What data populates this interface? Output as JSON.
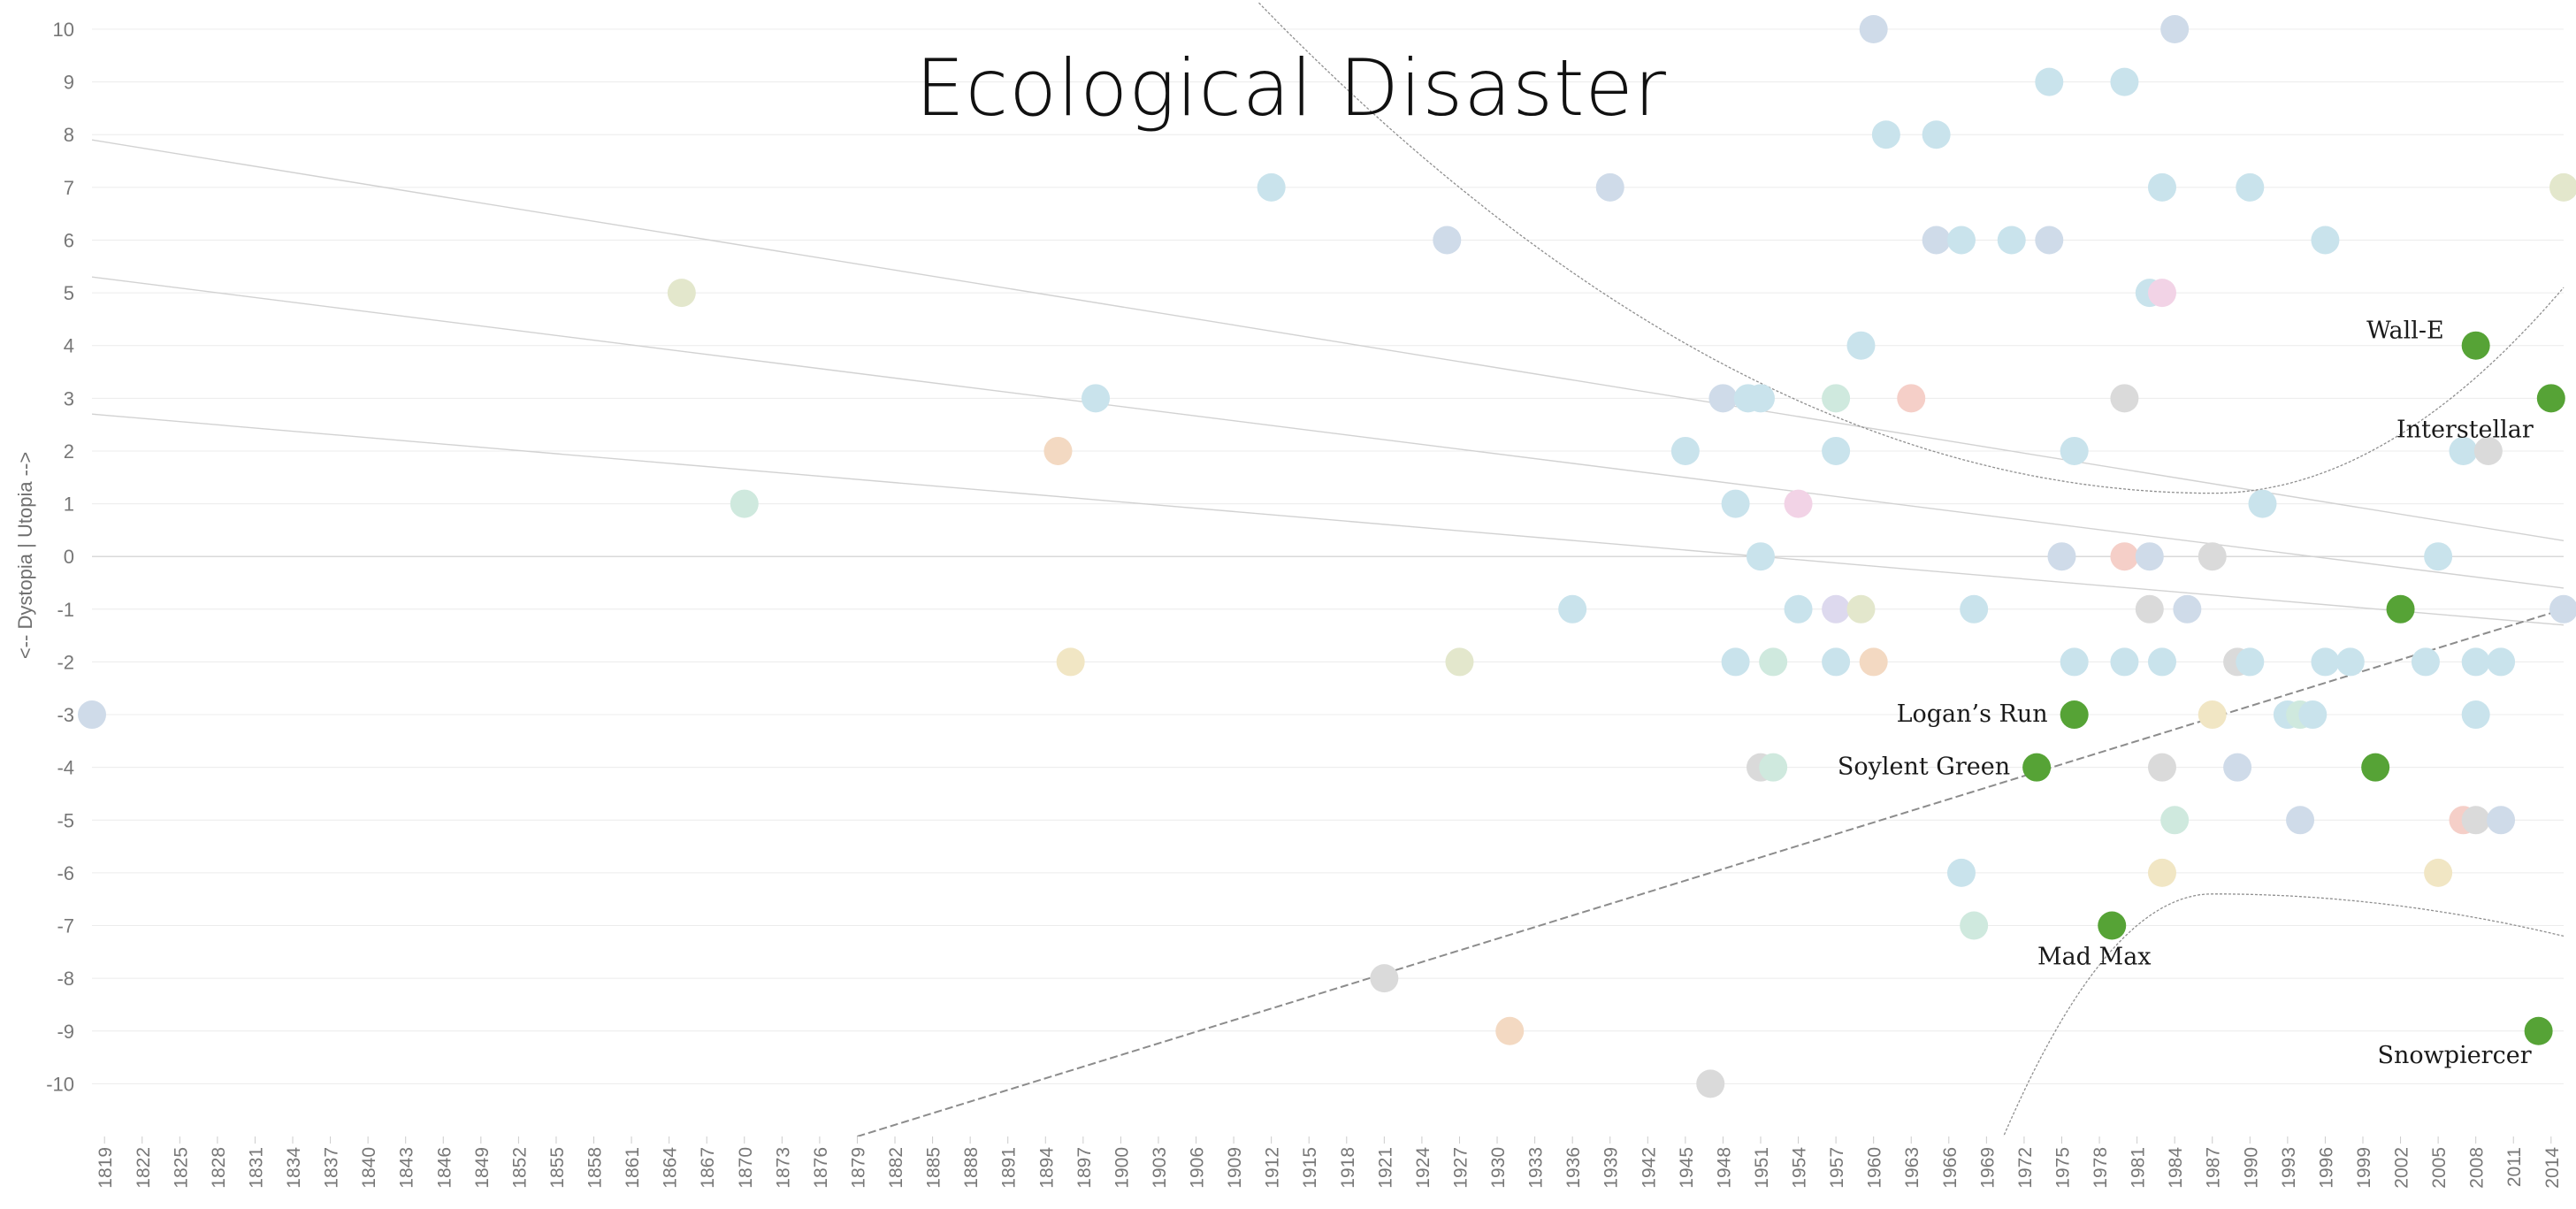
{
  "chart_data": {
    "type": "scatter",
    "title": "Ecological Disaster",
    "ylabel": "<-- Dystopia  |  Utopia -->",
    "xlabel": "",
    "xlim": [
      1818,
      2015
    ],
    "ylim": [
      -11,
      10
    ],
    "yticks": [
      "10",
      "9",
      "8",
      "7",
      "6",
      "5",
      "4",
      "3",
      "2",
      "1",
      "0",
      "-1",
      "-2",
      "-3",
      "-4",
      "-5",
      "-6",
      "-7",
      "-8",
      "-9",
      "-10"
    ],
    "xticks": [
      "1819",
      "1822",
      "1825",
      "1828",
      "1831",
      "1834",
      "1837",
      "1840",
      "1843",
      "1846",
      "1849",
      "1852",
      "1855",
      "1858",
      "1861",
      "1864",
      "1867",
      "1870",
      "1873",
      "1876",
      "1879",
      "1882",
      "1885",
      "1888",
      "1891",
      "1894",
      "1897",
      "1900",
      "1903",
      "1906",
      "1909",
      "1912",
      "1915",
      "1918",
      "1921",
      "1924",
      "1927",
      "1930",
      "1933",
      "1936",
      "1939",
      "1942",
      "1945",
      "1948",
      "1951",
      "1954",
      "1957",
      "1960",
      "1963",
      "1966",
      "1969",
      "1972",
      "1975",
      "1978",
      "1981",
      "1984",
      "1987",
      "1990",
      "1993",
      "1996",
      "1999",
      "2002",
      "2005",
      "2008",
      "2011",
      "2014"
    ],
    "colors": {
      "highlight": "#56a336",
      "blue": "#c9e3ec",
      "steel": "#cfdbe9",
      "green": "#cfe9de",
      "olive": "#e3e7cc",
      "tan": "#f1e6c4",
      "peach": "#f3d9c2",
      "salmon": "#f5cfc8",
      "pink": "#f2d3e6",
      "lavender": "#ddd9ee",
      "gray": "#dadada",
      "trend": "#9a9a9a"
    },
    "highlighted": [
      {
        "label": "Wall-E",
        "x": 2008,
        "y": 4
      },
      {
        "label": "Interstellar",
        "x": 2014,
        "y": 3
      },
      {
        "label": "",
        "x": 2002,
        "y": -1
      },
      {
        "label": "Logan’s Run",
        "x": 1976,
        "y": -3
      },
      {
        "label": "Soylent Green",
        "x": 1973,
        "y": -4
      },
      {
        "label": "",
        "x": 2000,
        "y": -4
      },
      {
        "label": "Mad Max",
        "x": 1979,
        "y": -7
      },
      {
        "label": "Snowpiercer",
        "x": 2013,
        "y": -9
      }
    ],
    "background_points": [
      {
        "x": 1818,
        "y": -3,
        "c": "steel"
      },
      {
        "x": 1865,
        "y": 5,
        "c": "olive"
      },
      {
        "x": 1870,
        "y": 1,
        "c": "green"
      },
      {
        "x": 1895,
        "y": 2,
        "c": "peach"
      },
      {
        "x": 1896,
        "y": -2,
        "c": "tan"
      },
      {
        "x": 1898,
        "y": 3,
        "c": "blue"
      },
      {
        "x": 1912,
        "y": 7,
        "c": "blue"
      },
      {
        "x": 1921,
        "y": -8,
        "c": "gray"
      },
      {
        "x": 1926,
        "y": 6,
        "c": "steel"
      },
      {
        "x": 1927,
        "y": -2,
        "c": "olive"
      },
      {
        "x": 1931,
        "y": -9,
        "c": "peach"
      },
      {
        "x": 1936,
        "y": -1,
        "c": "blue"
      },
      {
        "x": 1939,
        "y": 7,
        "c": "steel"
      },
      {
        "x": 1945,
        "y": 2,
        "c": "blue"
      },
      {
        "x": 1947,
        "y": -10,
        "c": "gray"
      },
      {
        "x": 1948,
        "y": 3,
        "c": "steel"
      },
      {
        "x": 1949,
        "y": 1,
        "c": "blue"
      },
      {
        "x": 1949,
        "y": -2,
        "c": "blue"
      },
      {
        "x": 1950,
        "y": 3,
        "c": "blue"
      },
      {
        "x": 1951,
        "y": 3,
        "c": "blue"
      },
      {
        "x": 1951,
        "y": 0,
        "c": "blue"
      },
      {
        "x": 1951,
        "y": -4,
        "c": "gray"
      },
      {
        "x": 1952,
        "y": -4,
        "c": "green"
      },
      {
        "x": 1952,
        "y": -2,
        "c": "green"
      },
      {
        "x": 1954,
        "y": -1,
        "c": "blue"
      },
      {
        "x": 1954,
        "y": 1,
        "c": "pink"
      },
      {
        "x": 1957,
        "y": 3,
        "c": "green"
      },
      {
        "x": 1957,
        "y": 2,
        "c": "blue"
      },
      {
        "x": 1957,
        "y": -1,
        "c": "lavender"
      },
      {
        "x": 1957,
        "y": -2,
        "c": "blue"
      },
      {
        "x": 1959,
        "y": -1,
        "c": "olive"
      },
      {
        "x": 1960,
        "y": 10,
        "c": "steel"
      },
      {
        "x": 1959,
        "y": 4,
        "c": "blue"
      },
      {
        "x": 1960,
        "y": -2,
        "c": "peach"
      },
      {
        "x": 1961,
        "y": 8,
        "c": "blue"
      },
      {
        "x": 1963,
        "y": 3,
        "c": "salmon"
      },
      {
        "x": 1965,
        "y": 8,
        "c": "blue"
      },
      {
        "x": 1965,
        "y": 6,
        "c": "steel"
      },
      {
        "x": 1967,
        "y": 6,
        "c": "blue"
      },
      {
        "x": 1967,
        "y": -6,
        "c": "blue"
      },
      {
        "x": 1968,
        "y": -1,
        "c": "blue"
      },
      {
        "x": 1968,
        "y": -7,
        "c": "green"
      },
      {
        "x": 1971,
        "y": 6,
        "c": "blue"
      },
      {
        "x": 1974,
        "y": 9,
        "c": "blue"
      },
      {
        "x": 1974,
        "y": 6,
        "c": "steel"
      },
      {
        "x": 1975,
        "y": 0,
        "c": "steel"
      },
      {
        "x": 1976,
        "y": 2,
        "c": "blue"
      },
      {
        "x": 1976,
        "y": -2,
        "c": "blue"
      },
      {
        "x": 1980,
        "y": 9,
        "c": "blue"
      },
      {
        "x": 1980,
        "y": 3,
        "c": "gray"
      },
      {
        "x": 1980,
        "y": 0,
        "c": "salmon"
      },
      {
        "x": 1980,
        "y": -2,
        "c": "blue"
      },
      {
        "x": 1982,
        "y": 5,
        "c": "blue"
      },
      {
        "x": 1982,
        "y": 0,
        "c": "steel"
      },
      {
        "x": 1982,
        "y": -1,
        "c": "gray"
      },
      {
        "x": 1983,
        "y": 5,
        "c": "pink"
      },
      {
        "x": 1983,
        "y": 7,
        "c": "blue"
      },
      {
        "x": 1983,
        "y": -2,
        "c": "blue"
      },
      {
        "x": 1983,
        "y": -4,
        "c": "gray"
      },
      {
        "x": 1983,
        "y": -6,
        "c": "tan"
      },
      {
        "x": 1984,
        "y": 10,
        "c": "steel"
      },
      {
        "x": 1984,
        "y": -5,
        "c": "green"
      },
      {
        "x": 1985,
        "y": -1,
        "c": "steel"
      },
      {
        "x": 1987,
        "y": 0,
        "c": "gray"
      },
      {
        "x": 1987,
        "y": -3,
        "c": "tan"
      },
      {
        "x": 1989,
        "y": -2,
        "c": "gray"
      },
      {
        "x": 1989,
        "y": -4,
        "c": "steel"
      },
      {
        "x": 1990,
        "y": 7,
        "c": "blue"
      },
      {
        "x": 1990,
        "y": -2,
        "c": "blue"
      },
      {
        "x": 1991,
        "y": 1,
        "c": "blue"
      },
      {
        "x": 1993,
        "y": -3,
        "c": "blue"
      },
      {
        "x": 1994,
        "y": -3,
        "c": "green"
      },
      {
        "x": 1994,
        "y": -5,
        "c": "steel"
      },
      {
        "x": 1995,
        "y": -3,
        "c": "blue"
      },
      {
        "x": 1996,
        "y": 6,
        "c": "blue"
      },
      {
        "x": 1996,
        "y": -2,
        "c": "blue"
      },
      {
        "x": 1998,
        "y": -2,
        "c": "blue"
      },
      {
        "x": 2004,
        "y": -2,
        "c": "blue"
      },
      {
        "x": 2005,
        "y": 0,
        "c": "blue"
      },
      {
        "x": 2005,
        "y": -6,
        "c": "tan"
      },
      {
        "x": 2007,
        "y": 2,
        "c": "blue"
      },
      {
        "x": 2007,
        "y": -5,
        "c": "salmon"
      },
      {
        "x": 2008,
        "y": -2,
        "c": "blue"
      },
      {
        "x": 2008,
        "y": -3,
        "c": "blue"
      },
      {
        "x": 2008,
        "y": -5,
        "c": "gray"
      },
      {
        "x": 2009,
        "y": 2,
        "c": "gray"
      },
      {
        "x": 2010,
        "y": -2,
        "c": "blue"
      },
      {
        "x": 2010,
        "y": -5,
        "c": "steel"
      },
      {
        "x": 2015,
        "y": 7,
        "c": "olive"
      },
      {
        "x": 2015,
        "y": -1,
        "c": "steel"
      }
    ],
    "trend_lines": [
      {
        "style": "solid-faint",
        "from": [
          1818,
          7.9
        ],
        "to": [
          2015,
          0.3
        ]
      },
      {
        "style": "solid-faint",
        "from": [
          1818,
          5.3
        ],
        "to": [
          2015,
          -0.6
        ]
      },
      {
        "style": "solid-faint",
        "from": [
          1818,
          2.7
        ],
        "to": [
          2015,
          -1.3
        ]
      },
      {
        "style": "dashed",
        "from": [
          1879,
          -11
        ],
        "to": [
          2015,
          -1.0
        ]
      }
    ],
    "confidence_band": {
      "vertex_x": 1987,
      "upper_vertex_y": 1.2,
      "lower_vertex_y": -6.4,
      "upper_left": [
        1911,
        10.5
      ],
      "upper_right": [
        2015,
        5.1
      ],
      "lower_left": [
        1970,
        -11.2
      ],
      "lower_right": [
        2015,
        -7.2
      ]
    }
  }
}
